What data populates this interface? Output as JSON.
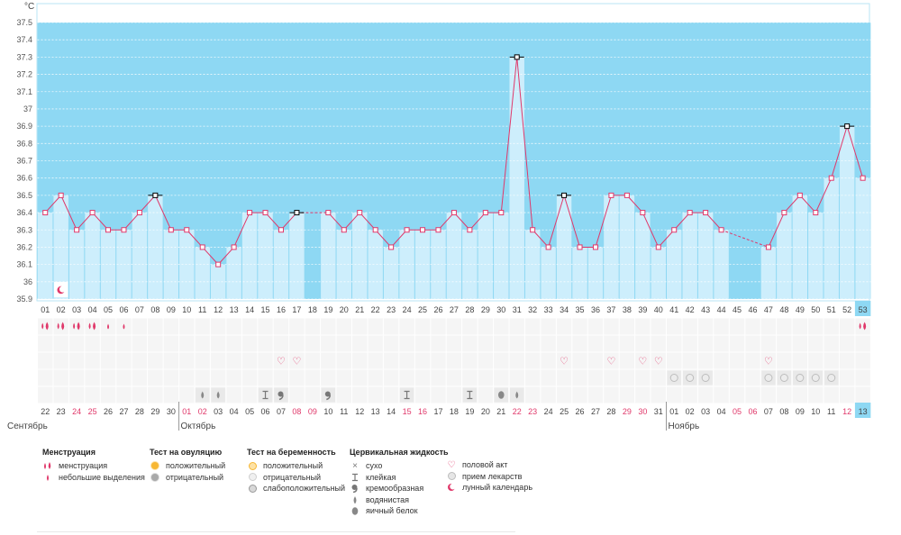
{
  "chart_data": {
    "type": "line",
    "title": "",
    "ylabel": "°C",
    "ylim": [
      35.9,
      37.5
    ],
    "y_ticks": [
      "35.9",
      "36",
      "36.1",
      "36.2",
      "36.3",
      "36.4",
      "36.5",
      "36.6",
      "36.7",
      "36.8",
      "36.9",
      "37",
      "37.1",
      "37.2",
      "37.3",
      "37.4",
      "37.5"
    ],
    "coverline": 36.4,
    "day_numbers": [
      "01",
      "02",
      "03",
      "04",
      "05",
      "06",
      "07",
      "08",
      "09",
      "10",
      "11",
      "12",
      "13",
      "14",
      "15",
      "16",
      "17",
      "18",
      "19",
      "20",
      "21",
      "22",
      "23",
      "24",
      "25",
      "26",
      "27",
      "28",
      "29",
      "30",
      "31",
      "32",
      "33",
      "34",
      "35",
      "36",
      "37",
      "38",
      "39",
      "40",
      "41",
      "42",
      "43",
      "44",
      "45",
      "46",
      "47",
      "48",
      "49",
      "50",
      "51",
      "52",
      "53"
    ],
    "temperatures": [
      36.4,
      36.5,
      36.3,
      36.4,
      36.3,
      36.3,
      36.4,
      36.5,
      36.3,
      36.3,
      36.2,
      36.1,
      36.2,
      36.4,
      36.4,
      36.3,
      36.4,
      null,
      36.4,
      36.3,
      36.4,
      36.3,
      36.2,
      36.3,
      36.3,
      36.3,
      36.4,
      36.3,
      36.4,
      36.4,
      37.3,
      36.3,
      36.2,
      36.5,
      36.2,
      36.2,
      36.5,
      36.5,
      36.4,
      36.2,
      36.3,
      36.4,
      36.4,
      36.3,
      null,
      null,
      36.2,
      36.4,
      36.5,
      36.4,
      36.6,
      36.9,
      36.6
    ],
    "flagged_days": [
      8,
      17,
      31,
      34,
      52
    ],
    "dates": [
      "22",
      "23",
      "24",
      "25",
      "26",
      "27",
      "28",
      "29",
      "30",
      "01",
      "02",
      "03",
      "04",
      "05",
      "06",
      "07",
      "08",
      "09",
      "10",
      "11",
      "12",
      "13",
      "14",
      "15",
      "16",
      "17",
      "18",
      "19",
      "20",
      "21",
      "22",
      "23",
      "24",
      "25",
      "26",
      "27",
      "28",
      "29",
      "30",
      "31",
      "01",
      "02",
      "03",
      "04",
      "05",
      "06",
      "07",
      "08",
      "09",
      "10",
      "11",
      "12",
      "13"
    ],
    "red_dates": [
      3,
      4,
      10,
      11,
      17,
      18,
      24,
      25,
      31,
      32,
      38,
      39,
      45,
      46,
      52
    ],
    "months": [
      {
        "label": "Сентябрь",
        "start": 1
      },
      {
        "label": "Октябрь",
        "start": 10
      },
      {
        "label": "Ноябрь",
        "start": 41
      }
    ],
    "current_day": 53,
    "moon_day": 2,
    "markers": {
      "menstruation": [
        1,
        2,
        3,
        4,
        53
      ],
      "spotting": [
        5,
        6
      ],
      "intercourse": [
        16,
        17,
        34,
        37,
        39,
        40,
        47
      ],
      "medication": [
        41,
        42,
        43,
        47,
        48,
        49,
        50,
        51
      ],
      "cervical_fluid": [
        {
          "day": 11,
          "kind": "watery"
        },
        {
          "day": 12,
          "kind": "watery"
        },
        {
          "day": 15,
          "kind": "sticky"
        },
        {
          "day": 16,
          "kind": "creamy"
        },
        {
          "day": 19,
          "kind": "creamy"
        },
        {
          "day": 24,
          "kind": "sticky"
        },
        {
          "day": 28,
          "kind": "sticky"
        },
        {
          "day": 30,
          "kind": "eggwhite"
        },
        {
          "day": 31,
          "kind": "watery"
        }
      ]
    },
    "colors": {
      "plot_bg": "#8ed8f3",
      "bar": "#cdeefc",
      "line": "#e0386a",
      "red_text": "#e0386a",
      "current_box": "#8ed8f3"
    }
  },
  "legend": {
    "menstruation": {
      "title": "Менструация",
      "items": [
        "менструация",
        "небольшие выделения"
      ]
    },
    "ovulation_test": {
      "title": "Тест на овуляцию",
      "items": [
        "положительный",
        "отрицательный"
      ]
    },
    "pregnancy_test": {
      "title": "Тест на беременность",
      "items": [
        "положительный",
        "отрицательный",
        "слабоположительный"
      ]
    },
    "cervical": {
      "title": "Цервикальная жидкость",
      "items": [
        "сухо",
        "клейкая",
        "кремообразная",
        "водянистая",
        "яичный белок"
      ]
    },
    "other": {
      "items": [
        "половой акт",
        "прием лекарств",
        "лунный календарь"
      ]
    }
  }
}
